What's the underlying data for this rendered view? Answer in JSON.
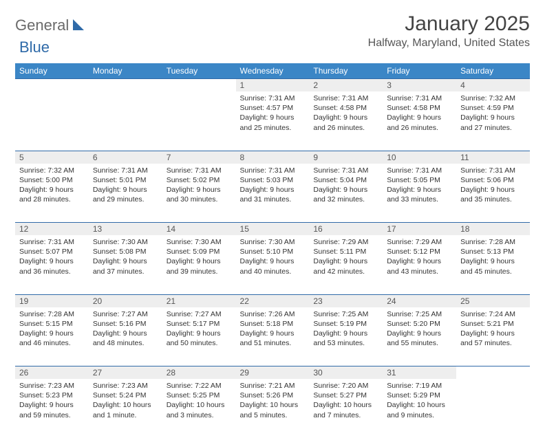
{
  "logo": {
    "general": "General",
    "blue": "Blue"
  },
  "title": "January 2025",
  "location": "Halfway, Maryland, United States",
  "colors": {
    "header_bg": "#3b86c6",
    "header_text": "#ffffff",
    "daynum_bg": "#eeeeee",
    "border": "#2f6aa8",
    "text": "#333333",
    "logo_gray": "#6a6a6a",
    "logo_blue": "#2f6aa8"
  },
  "day_headers": [
    "Sunday",
    "Monday",
    "Tuesday",
    "Wednesday",
    "Thursday",
    "Friday",
    "Saturday"
  ],
  "weeks": [
    [
      null,
      null,
      null,
      {
        "n": "1",
        "sr": "Sunrise: 7:31 AM",
        "ss": "Sunset: 4:57 PM",
        "dl": "Daylight: 9 hours and 25 minutes."
      },
      {
        "n": "2",
        "sr": "Sunrise: 7:31 AM",
        "ss": "Sunset: 4:58 PM",
        "dl": "Daylight: 9 hours and 26 minutes."
      },
      {
        "n": "3",
        "sr": "Sunrise: 7:31 AM",
        "ss": "Sunset: 4:58 PM",
        "dl": "Daylight: 9 hours and 26 minutes."
      },
      {
        "n": "4",
        "sr": "Sunrise: 7:32 AM",
        "ss": "Sunset: 4:59 PM",
        "dl": "Daylight: 9 hours and 27 minutes."
      }
    ],
    [
      {
        "n": "5",
        "sr": "Sunrise: 7:32 AM",
        "ss": "Sunset: 5:00 PM",
        "dl": "Daylight: 9 hours and 28 minutes."
      },
      {
        "n": "6",
        "sr": "Sunrise: 7:31 AM",
        "ss": "Sunset: 5:01 PM",
        "dl": "Daylight: 9 hours and 29 minutes."
      },
      {
        "n": "7",
        "sr": "Sunrise: 7:31 AM",
        "ss": "Sunset: 5:02 PM",
        "dl": "Daylight: 9 hours and 30 minutes."
      },
      {
        "n": "8",
        "sr": "Sunrise: 7:31 AM",
        "ss": "Sunset: 5:03 PM",
        "dl": "Daylight: 9 hours and 31 minutes."
      },
      {
        "n": "9",
        "sr": "Sunrise: 7:31 AM",
        "ss": "Sunset: 5:04 PM",
        "dl": "Daylight: 9 hours and 32 minutes."
      },
      {
        "n": "10",
        "sr": "Sunrise: 7:31 AM",
        "ss": "Sunset: 5:05 PM",
        "dl": "Daylight: 9 hours and 33 minutes."
      },
      {
        "n": "11",
        "sr": "Sunrise: 7:31 AM",
        "ss": "Sunset: 5:06 PM",
        "dl": "Daylight: 9 hours and 35 minutes."
      }
    ],
    [
      {
        "n": "12",
        "sr": "Sunrise: 7:31 AM",
        "ss": "Sunset: 5:07 PM",
        "dl": "Daylight: 9 hours and 36 minutes."
      },
      {
        "n": "13",
        "sr": "Sunrise: 7:30 AM",
        "ss": "Sunset: 5:08 PM",
        "dl": "Daylight: 9 hours and 37 minutes."
      },
      {
        "n": "14",
        "sr": "Sunrise: 7:30 AM",
        "ss": "Sunset: 5:09 PM",
        "dl": "Daylight: 9 hours and 39 minutes."
      },
      {
        "n": "15",
        "sr": "Sunrise: 7:30 AM",
        "ss": "Sunset: 5:10 PM",
        "dl": "Daylight: 9 hours and 40 minutes."
      },
      {
        "n": "16",
        "sr": "Sunrise: 7:29 AM",
        "ss": "Sunset: 5:11 PM",
        "dl": "Daylight: 9 hours and 42 minutes."
      },
      {
        "n": "17",
        "sr": "Sunrise: 7:29 AM",
        "ss": "Sunset: 5:12 PM",
        "dl": "Daylight: 9 hours and 43 minutes."
      },
      {
        "n": "18",
        "sr": "Sunrise: 7:28 AM",
        "ss": "Sunset: 5:13 PM",
        "dl": "Daylight: 9 hours and 45 minutes."
      }
    ],
    [
      {
        "n": "19",
        "sr": "Sunrise: 7:28 AM",
        "ss": "Sunset: 5:15 PM",
        "dl": "Daylight: 9 hours and 46 minutes."
      },
      {
        "n": "20",
        "sr": "Sunrise: 7:27 AM",
        "ss": "Sunset: 5:16 PM",
        "dl": "Daylight: 9 hours and 48 minutes."
      },
      {
        "n": "21",
        "sr": "Sunrise: 7:27 AM",
        "ss": "Sunset: 5:17 PM",
        "dl": "Daylight: 9 hours and 50 minutes."
      },
      {
        "n": "22",
        "sr": "Sunrise: 7:26 AM",
        "ss": "Sunset: 5:18 PM",
        "dl": "Daylight: 9 hours and 51 minutes."
      },
      {
        "n": "23",
        "sr": "Sunrise: 7:25 AM",
        "ss": "Sunset: 5:19 PM",
        "dl": "Daylight: 9 hours and 53 minutes."
      },
      {
        "n": "24",
        "sr": "Sunrise: 7:25 AM",
        "ss": "Sunset: 5:20 PM",
        "dl": "Daylight: 9 hours and 55 minutes."
      },
      {
        "n": "25",
        "sr": "Sunrise: 7:24 AM",
        "ss": "Sunset: 5:21 PM",
        "dl": "Daylight: 9 hours and 57 minutes."
      }
    ],
    [
      {
        "n": "26",
        "sr": "Sunrise: 7:23 AM",
        "ss": "Sunset: 5:23 PM",
        "dl": "Daylight: 9 hours and 59 minutes."
      },
      {
        "n": "27",
        "sr": "Sunrise: 7:23 AM",
        "ss": "Sunset: 5:24 PM",
        "dl": "Daylight: 10 hours and 1 minute."
      },
      {
        "n": "28",
        "sr": "Sunrise: 7:22 AM",
        "ss": "Sunset: 5:25 PM",
        "dl": "Daylight: 10 hours and 3 minutes."
      },
      {
        "n": "29",
        "sr": "Sunrise: 7:21 AM",
        "ss": "Sunset: 5:26 PM",
        "dl": "Daylight: 10 hours and 5 minutes."
      },
      {
        "n": "30",
        "sr": "Sunrise: 7:20 AM",
        "ss": "Sunset: 5:27 PM",
        "dl": "Daylight: 10 hours and 7 minutes."
      },
      {
        "n": "31",
        "sr": "Sunrise: 7:19 AM",
        "ss": "Sunset: 5:29 PM",
        "dl": "Daylight: 10 hours and 9 minutes."
      },
      null
    ]
  ]
}
